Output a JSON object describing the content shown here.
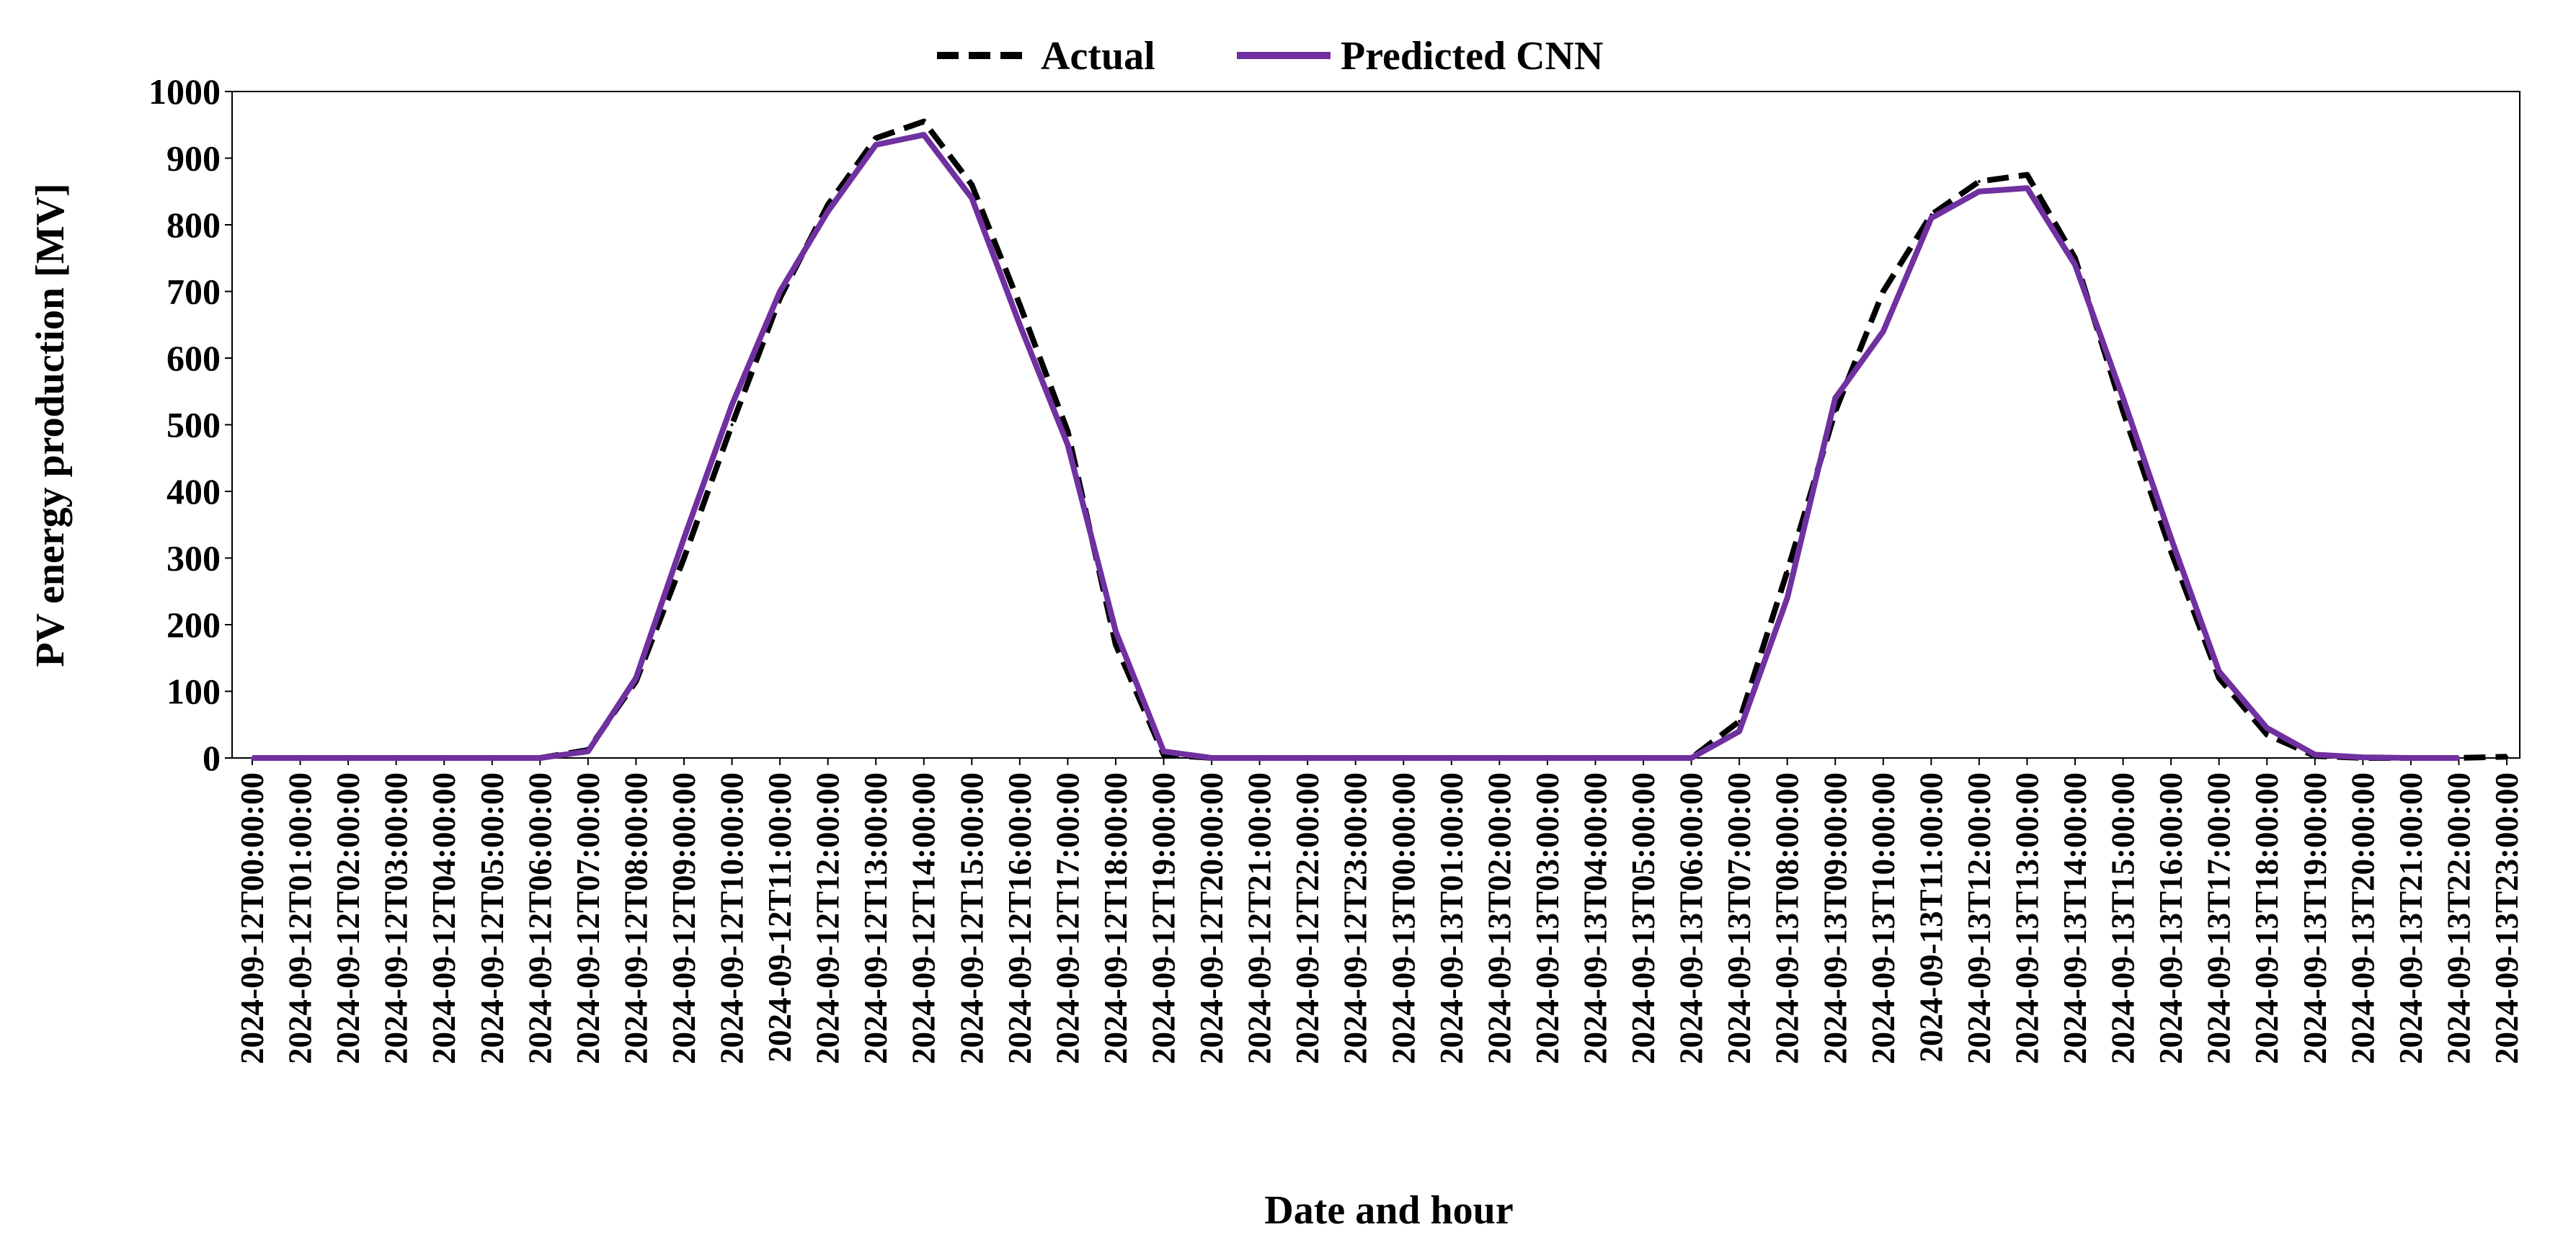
{
  "colors": {
    "actual": "#000000",
    "predicted": "#7030a0",
    "axis": "#000000",
    "background": "#ffffff"
  },
  "chart_data": {
    "type": "line",
    "title": "",
    "xlabel": "Date and hour",
    "ylabel": "PV energy production  [MV]",
    "ylim": [
      0,
      1000
    ],
    "yticks": [
      0,
      100,
      200,
      300,
      400,
      500,
      600,
      700,
      800,
      900,
      1000
    ],
    "grid": false,
    "legend_position": "top-center",
    "x": [
      "2024-09-12T00:00:00",
      "2024-09-12T01:00:00",
      "2024-09-12T02:00:00",
      "2024-09-12T03:00:00",
      "2024-09-12T04:00:00",
      "2024-09-12T05:00:00",
      "2024-09-12T06:00:00",
      "2024-09-12T07:00:00",
      "2024-09-12T08:00:00",
      "2024-09-12T09:00:00",
      "2024-09-12T10:00:00",
      "2024-09-12T11:00:00",
      "2024-09-12T12:00:00",
      "2024-09-12T13:00:00",
      "2024-09-12T14:00:00",
      "2024-09-12T15:00:00",
      "2024-09-12T16:00:00",
      "2024-09-12T17:00:00",
      "2024-09-12T18:00:00",
      "2024-09-12T19:00:00",
      "2024-09-12T20:00:00",
      "2024-09-12T21:00:00",
      "2024-09-12T22:00:00",
      "2024-09-12T23:00:00",
      "2024-09-13T00:00:00",
      "2024-09-13T01:00:00",
      "2024-09-13T02:00:00",
      "2024-09-13T03:00:00",
      "2024-09-13T04:00:00",
      "2024-09-13T05:00:00",
      "2024-09-13T06:00:00",
      "2024-09-13T07:00:00",
      "2024-09-13T08:00:00",
      "2024-09-13T09:00:00",
      "2024-09-13T10:00:00",
      "2024-09-13T11:00:00",
      "2024-09-13T12:00:00",
      "2024-09-13T13:00:00",
      "2024-09-13T14:00:00",
      "2024-09-13T15:00:00",
      "2024-09-13T16:00:00",
      "2024-09-13T17:00:00",
      "2024-09-13T18:00:00",
      "2024-09-13T19:00:00",
      "2024-09-13T20:00:00",
      "2024-09-13T21:00:00",
      "2024-09-13T22:00:00",
      "2024-09-13T23:00:00"
    ],
    "series": [
      {
        "name": "Actual",
        "style": "dashed",
        "values": [
          0,
          0,
          0,
          0,
          0,
          0,
          0,
          12,
          115,
          300,
          500,
          690,
          830,
          930,
          955,
          860,
          680,
          490,
          170,
          5,
          0,
          0,
          0,
          0,
          0,
          0,
          0,
          0,
          0,
          0,
          0,
          55,
          280,
          520,
          700,
          815,
          865,
          875,
          750,
          520,
          310,
          120,
          35,
          3,
          0,
          0,
          0,
          2
        ]
      },
      {
        "name": "Predicted CNN",
        "style": "solid",
        "values": [
          0,
          0,
          0,
          0,
          0,
          0,
          0,
          10,
          120,
          330,
          530,
          700,
          820,
          920,
          935,
          840,
          650,
          470,
          190,
          10,
          0,
          0,
          0,
          0,
          0,
          0,
          0,
          0,
          0,
          0,
          0,
          40,
          240,
          540,
          640,
          810,
          850,
          855,
          740,
          540,
          330,
          130,
          45,
          5,
          1,
          0,
          0,
          null
        ]
      }
    ]
  }
}
